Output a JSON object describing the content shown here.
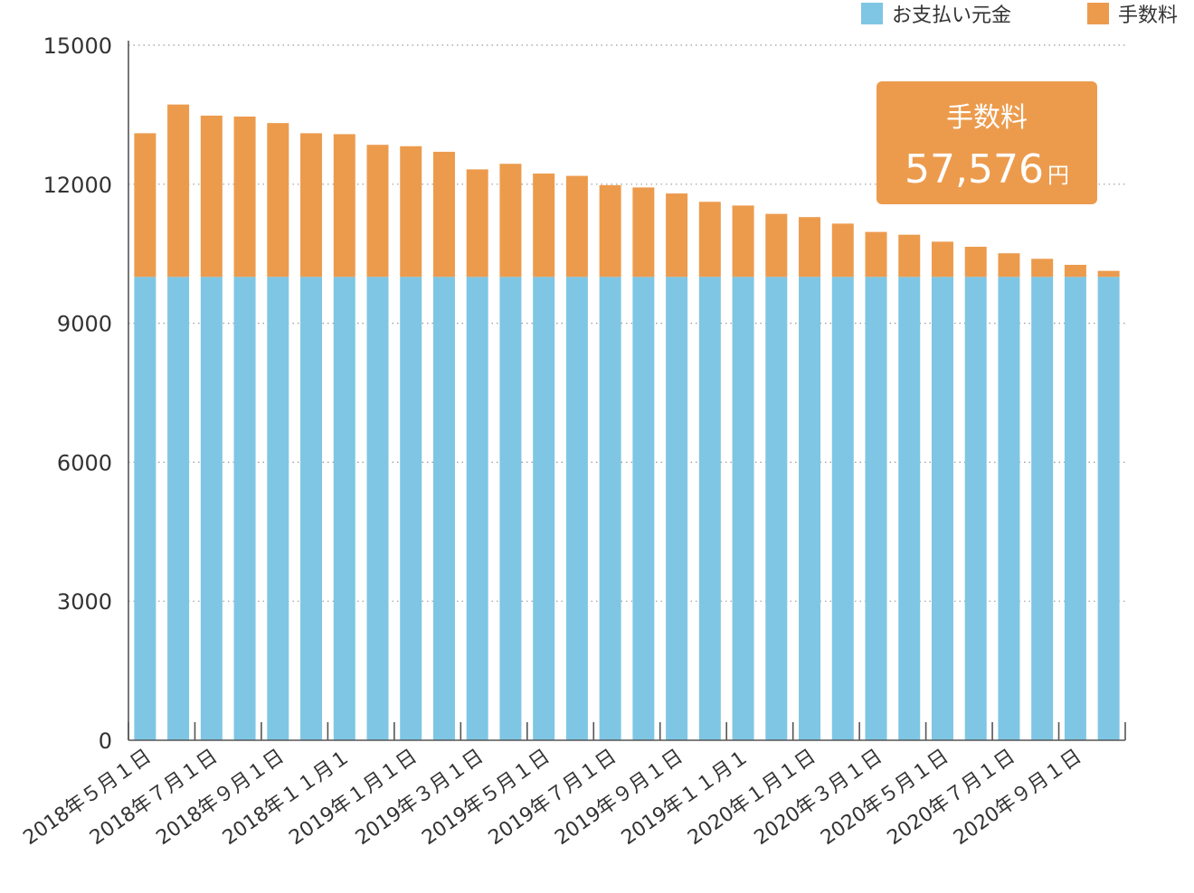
{
  "chart_data": {
    "type": "bar",
    "stacked": true,
    "title": "",
    "xlabel": "",
    "ylabel": "",
    "ylim": [
      0,
      15000
    ],
    "yticks": [
      0,
      3000,
      6000,
      9000,
      12000,
      15000
    ],
    "grid": true,
    "legend_position": "top-right",
    "x_tick_labels": [
      "2018年５月１日",
      "2018年７月１日",
      "2018年９月１日",
      "2018年１１月１",
      "2019年１月１日",
      "2019年３月１日",
      "2019年５月１日",
      "2019年７月１日",
      "2019年９月１日",
      "2019年１１月１",
      "2020年１月１日",
      "2020年３月１日",
      "2020年５月１日",
      "2020年７月１日",
      "2020年９月１日"
    ],
    "series": [
      {
        "name": "お支払い元金",
        "color": "#7fc6e4",
        "values": [
          10000,
          10000,
          10000,
          10000,
          10000,
          10000,
          10000,
          10000,
          10000,
          10000,
          10000,
          10000,
          10000,
          10000,
          10000,
          10000,
          10000,
          10000,
          10000,
          10000,
          10000,
          10000,
          10000,
          10000,
          10000,
          10000,
          10000,
          10000,
          10000,
          10000
        ]
      },
      {
        "name": "手数料",
        "color": "#ec9b4d",
        "values": [
          3100,
          3720,
          3480,
          3460,
          3320,
          3100,
          3080,
          2850,
          2820,
          2700,
          2320,
          2440,
          2230,
          2180,
          1980,
          1930,
          1800,
          1620,
          1540,
          1360,
          1290,
          1150,
          970,
          910,
          760,
          650,
          510,
          390,
          260,
          130
        ]
      }
    ],
    "callout": {
      "title": "手数料",
      "value": "57,576",
      "unit": "円"
    }
  }
}
